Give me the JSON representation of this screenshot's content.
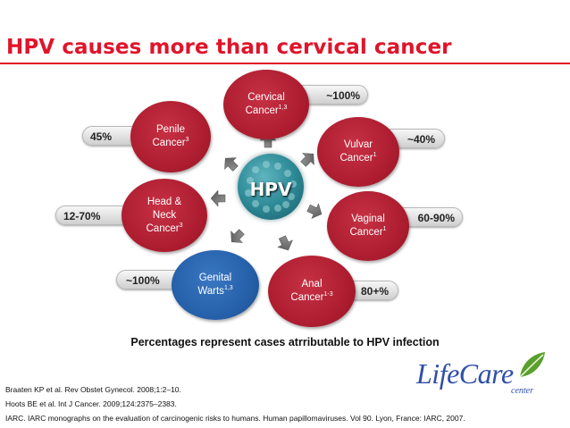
{
  "title": "HPV causes more than cervical cancer",
  "center": {
    "label": "HPV"
  },
  "items": [
    {
      "name_line1": "Cervical",
      "name_line2": "Cancer",
      "sup": "1,3",
      "percent": "~100%",
      "color": "#ac1c2f"
    },
    {
      "name_line1": "Vulvar",
      "name_line2": "Cancer",
      "sup": "1",
      "percent": "~40%",
      "color": "#ac1c2f"
    },
    {
      "name_line1": "Vaginal",
      "name_line2": "Cancer",
      "sup": "1",
      "percent": "60-90%",
      "color": "#ac1c2f"
    },
    {
      "name_line1": "Anal",
      "name_line2": "Cancer",
      "sup": "1-3",
      "percent": "80+%",
      "color": "#ac1c2f"
    },
    {
      "name_line1": "Genital",
      "name_line2": "Warts",
      "sup": "1,3",
      "percent": "~100%",
      "color": "#245fa8"
    },
    {
      "name_line1": "Head &",
      "name_line2": "Neck",
      "name_line3": "Cancer",
      "sup": "3",
      "percent": "12-70%",
      "color": "#ac1c2f"
    },
    {
      "name_line1": "Penile",
      "name_line2": "Cancer",
      "sup": "3",
      "percent": "45%",
      "color": "#ac1c2f"
    }
  ],
  "caption": "Percentages represent cases atrributable to HPV infection",
  "references": [
    "Braaten KP et al. Rev Obstet Gynecol. 2008;1:2–10.",
    "Hoots BE et al. Int J Cancer. 2009;124:2375–2383.",
    "IARC. IARC monographs on the evaluation of carcinogenic risks to humans. Human papillomaviruses. Vol 90. Lyon, France: IARC, 2007."
  ],
  "logo": {
    "text": "LifeCare",
    "sub": "center"
  }
}
